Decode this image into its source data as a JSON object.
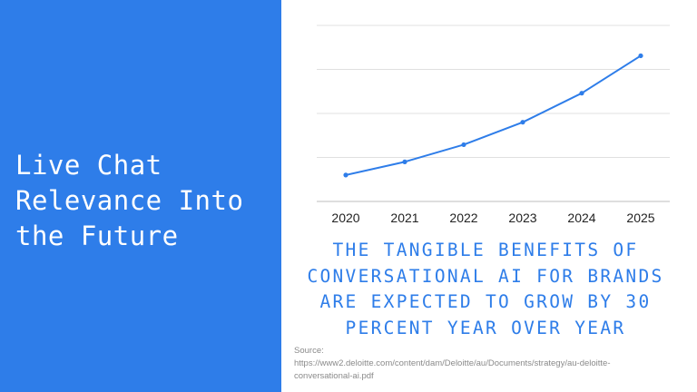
{
  "slide": {
    "title_lines": [
      "Live Chat",
      "Relevance Into",
      "the Future"
    ],
    "caption": "THE TANGIBLE BENEFITS OF CONVERSATIONAL AI FOR BRANDS ARE EXPECTED TO GROW BY 30 PERCENT YEAR OVER YEAR",
    "source_label": "Source:",
    "source_url_line1": "https://www2.deloitte.com/content/dam/Deloitte/au/Documents/strategy/au-deloitte-",
    "source_url_line2": "conversational-ai.pdf"
  },
  "colors": {
    "panel": "#2e7de9",
    "line": "#2e7de9",
    "caption": "#2e7de9",
    "grid": "#e0e0e0"
  },
  "chart_data": {
    "type": "line",
    "categories": [
      "2020",
      "2021",
      "2022",
      "2023",
      "2024",
      "2025"
    ],
    "values": [
      1.0,
      1.3,
      1.69,
      2.2,
      2.86,
      3.71
    ],
    "ylim": [
      0.4,
      4.4
    ],
    "y_gridlines": [
      0.4,
      1.4,
      2.4,
      3.4,
      4.4
    ],
    "y_tick_labels_shown": false,
    "grid": true,
    "legend": "none",
    "markers": true
  }
}
